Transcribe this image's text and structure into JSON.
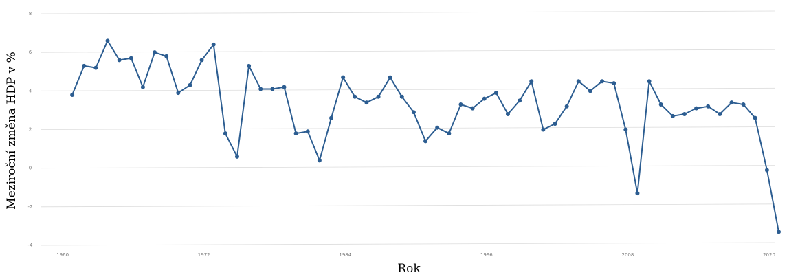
{
  "chart_data": {
    "type": "line",
    "xlabel": "Rok",
    "ylabel": "Meziroční změna HDP v %",
    "xlim": [
      1959,
      2020
    ],
    "ylim": [
      -4,
      8
    ],
    "x_ticks": [
      1960,
      1972,
      1984,
      1996,
      2008,
      2020
    ],
    "y_ticks": [
      -4,
      -2,
      0,
      2,
      4,
      6,
      8
    ],
    "grid": true,
    "line_color": "#2c5d91",
    "series": [
      {
        "x": [
          1960,
          1961,
          1962,
          1963,
          1964,
          1965,
          1966,
          1967,
          1968,
          1969,
          1970,
          1971,
          1972,
          1973,
          1974,
          1975,
          1976,
          1977,
          1978,
          1979,
          1980,
          1981,
          1982,
          1983,
          1984,
          1985,
          1986,
          1987,
          1988,
          1989,
          1990,
          1991,
          1992,
          1993,
          1994,
          1995,
          1996,
          1997,
          1998,
          1999,
          2000,
          2001,
          2002,
          2003,
          2004,
          2005,
          2006,
          2007,
          2008,
          2009,
          2010,
          2011,
          2012,
          2013,
          2014,
          2015,
          2016,
          2017,
          2018,
          2019,
          2020
        ],
        "values": [
          3.8,
          5.3,
          5.2,
          6.6,
          5.6,
          5.7,
          4.2,
          6.0,
          5.8,
          3.9,
          4.3,
          5.6,
          6.4,
          1.8,
          0.6,
          5.3,
          4.1,
          4.1,
          4.2,
          1.8,
          1.9,
          0.4,
          2.6,
          4.7,
          3.7,
          3.4,
          3.7,
          4.7,
          3.7,
          2.9,
          1.4,
          2.1,
          1.8,
          3.3,
          3.1,
          3.6,
          3.9,
          2.8,
          3.5,
          4.5,
          2.0,
          2.3,
          3.2,
          4.5,
          4.0,
          4.5,
          4.4,
          2.0,
          -1.3,
          4.5,
          3.3,
          2.7,
          2.8,
          3.1,
          3.2,
          2.8,
          3.4,
          3.3,
          2.6,
          -0.1,
          -3.3
        ]
      }
    ]
  }
}
